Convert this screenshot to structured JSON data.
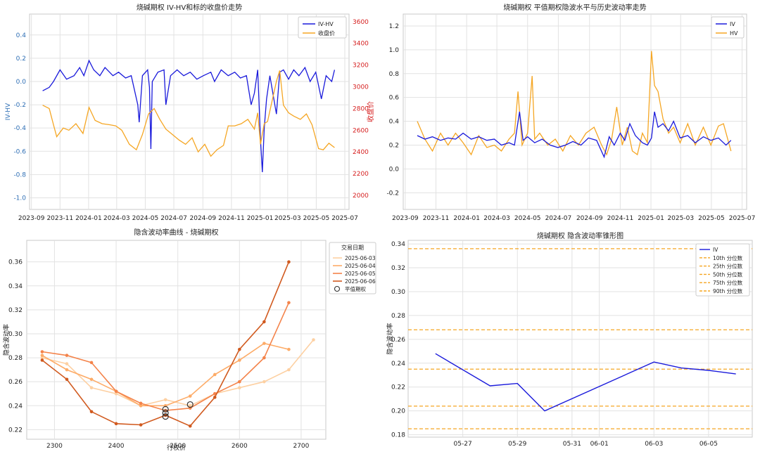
{
  "chart_data": [
    {
      "type": "line",
      "title": "烧碱期权 IV-HV和标的收盘价走势",
      "ylabel": "IV-HV",
      "y2label": "收盘价",
      "ylim": [
        -1.1,
        0.58
      ],
      "y2lim": [
        1870,
        3670
      ],
      "xlim": [
        "2023-08-28",
        "2025-07-10"
      ],
      "yticks": [
        -1.0,
        -0.8,
        -0.6,
        -0.4,
        -0.2,
        0.0,
        0.2,
        0.4
      ],
      "y2ticks": [
        2000,
        2200,
        2400,
        2600,
        2800,
        3000,
        3200,
        3400,
        3600
      ],
      "xticks": [
        "2023-09",
        "2023-11",
        "2024-01",
        "2024-03",
        "2024-05",
        "2024-07",
        "2024-09",
        "2024-11",
        "2025-01",
        "2025-03",
        "2025-05",
        "2025-07"
      ],
      "grid": true,
      "legend": "top-right",
      "series": [
        {
          "name": "IV-HV",
          "color": "#1a1adb",
          "x": [
            "2023-09-25",
            "2023-10-09",
            "2023-10-18",
            "2023-11-01",
            "2023-11-15",
            "2023-12-01",
            "2023-12-13",
            "2023-12-22",
            "2024-01-02",
            "2024-01-12",
            "2024-01-25",
            "2024-02-05",
            "2024-02-22",
            "2024-03-05",
            "2024-03-20",
            "2024-04-01",
            "2024-04-15",
            "2024-04-18",
            "2024-04-25",
            "2024-05-06",
            "2024-05-10",
            "2024-05-13",
            "2024-05-16",
            "2024-05-28",
            "2024-06-10",
            "2024-06-14",
            "2024-06-24",
            "2024-07-08",
            "2024-07-22",
            "2024-08-05",
            "2024-08-19",
            "2024-09-02",
            "2024-09-18",
            "2024-09-26",
            "2024-10-10",
            "2024-10-25",
            "2024-11-08",
            "2024-11-20",
            "2024-12-03",
            "2024-12-13",
            "2024-12-20",
            "2024-12-27",
            "2025-01-02",
            "2025-01-06",
            "2025-01-10",
            "2025-01-15",
            "2025-01-22",
            "2025-02-05",
            "2025-02-12",
            "2025-02-20",
            "2025-03-03",
            "2025-03-14",
            "2025-03-25",
            "2025-04-07",
            "2025-04-18",
            "2025-04-30",
            "2025-05-12",
            "2025-05-22",
            "2025-06-03",
            "2025-06-09"
          ],
          "y": [
            -0.08,
            -0.05,
            0.0,
            0.1,
            0.02,
            0.05,
            0.12,
            0.05,
            0.18,
            0.1,
            0.05,
            0.12,
            0.05,
            0.08,
            0.03,
            0.05,
            -0.2,
            -0.35,
            0.05,
            0.1,
            -0.05,
            -0.58,
            0.0,
            0.08,
            0.1,
            -0.2,
            0.05,
            0.1,
            0.05,
            0.08,
            0.02,
            0.05,
            0.08,
            0.0,
            0.1,
            0.05,
            0.08,
            0.03,
            0.05,
            -0.2,
            -0.1,
            0.1,
            -0.5,
            -0.78,
            -0.4,
            -0.15,
            0.05,
            -0.28,
            0.08,
            0.1,
            0.02,
            0.1,
            0.05,
            0.12,
            0.0,
            0.08,
            -0.15,
            0.05,
            0.0,
            0.1
          ]
        },
        {
          "name": "收盘价",
          "axis": "y2",
          "color": "#f5a623",
          "x": [
            "2023-09-25",
            "2023-10-09",
            "2023-10-18",
            "2023-10-25",
            "2023-11-08",
            "2023-11-20",
            "2023-12-05",
            "2023-12-20",
            "2024-01-02",
            "2024-01-15",
            "2024-01-30",
            "2024-02-15",
            "2024-02-28",
            "2024-03-12",
            "2024-03-28",
            "2024-04-12",
            "2024-04-25",
            "2024-05-08",
            "2024-05-20",
            "2024-06-01",
            "2024-06-14",
            "2024-06-28",
            "2024-07-12",
            "2024-07-26",
            "2024-08-09",
            "2024-08-22",
            "2024-09-05",
            "2024-09-18",
            "2024-10-01",
            "2024-10-15",
            "2024-10-25",
            "2024-11-08",
            "2024-11-22",
            "2024-12-06",
            "2024-12-20",
            "2024-12-27",
            "2025-01-02",
            "2025-01-10",
            "2025-01-17",
            "2025-02-05",
            "2025-02-12",
            "2025-02-20",
            "2025-03-03",
            "2025-03-14",
            "2025-03-28",
            "2025-04-10",
            "2025-04-22",
            "2025-05-06",
            "2025-05-16",
            "2025-05-28",
            "2025-06-09"
          ],
          "y": [
            2830,
            2800,
            2650,
            2540,
            2620,
            2600,
            2660,
            2570,
            2810,
            2690,
            2660,
            2650,
            2640,
            2600,
            2470,
            2420,
            2560,
            2750,
            2800,
            2700,
            2610,
            2560,
            2510,
            2470,
            2530,
            2400,
            2470,
            2360,
            2420,
            2460,
            2640,
            2640,
            2660,
            2700,
            2610,
            2760,
            2470,
            2660,
            2680,
            3050,
            3150,
            2830,
            2760,
            2730,
            2700,
            2750,
            2650,
            2430,
            2420,
            2480,
            2440
          ]
        }
      ]
    },
    {
      "type": "line",
      "title": "烧碱期权 平值期权隐波水平与历史波动率走势",
      "ylim": [
        -0.34,
        1.3
      ],
      "xlim": [
        "2023-08-28",
        "2025-07-10"
      ],
      "yticks": [
        -0.2,
        0.0,
        0.2,
        0.4,
        0.6,
        0.8,
        1.0,
        1.2
      ],
      "xticks": [
        "2023-09",
        "2023-11",
        "2024-01",
        "2024-03",
        "2024-05",
        "2024-07",
        "2024-09",
        "2024-11",
        "2025-01",
        "2025-03",
        "2025-05",
        "2025-07"
      ],
      "grid": true,
      "legend": "top-right",
      "series": [
        {
          "name": "IV",
          "color": "#1a1adb",
          "x": [
            "2023-09-25",
            "2023-10-10",
            "2023-10-25",
            "2023-11-10",
            "2023-11-25",
            "2023-12-10",
            "2023-12-25",
            "2024-01-10",
            "2024-01-25",
            "2024-02-10",
            "2024-02-25",
            "2024-03-10",
            "2024-03-25",
            "2024-04-05",
            "2024-04-15",
            "2024-04-22",
            "2024-05-01",
            "2024-05-15",
            "2024-05-30",
            "2024-06-15",
            "2024-06-30",
            "2024-07-15",
            "2024-07-30",
            "2024-08-15",
            "2024-08-30",
            "2024-09-15",
            "2024-09-30",
            "2024-10-10",
            "2024-10-20",
            "2024-11-01",
            "2024-11-10",
            "2024-11-20",
            "2024-12-01",
            "2024-12-15",
            "2024-12-25",
            "2025-01-02",
            "2025-01-08",
            "2025-01-15",
            "2025-01-25",
            "2025-02-05",
            "2025-02-15",
            "2025-02-28",
            "2025-03-15",
            "2025-03-30",
            "2025-04-15",
            "2025-04-30",
            "2025-05-15",
            "2025-05-30",
            "2025-06-09"
          ],
          "y": [
            0.28,
            0.25,
            0.27,
            0.24,
            0.26,
            0.25,
            0.3,
            0.25,
            0.27,
            0.24,
            0.25,
            0.2,
            0.22,
            0.2,
            0.48,
            0.24,
            0.27,
            0.22,
            0.25,
            0.2,
            0.18,
            0.2,
            0.23,
            0.2,
            0.26,
            0.24,
            0.1,
            0.27,
            0.2,
            0.3,
            0.24,
            0.38,
            0.28,
            0.22,
            0.2,
            0.26,
            0.48,
            0.35,
            0.38,
            0.32,
            0.4,
            0.26,
            0.28,
            0.22,
            0.27,
            0.24,
            0.26,
            0.2,
            0.24
          ]
        },
        {
          "name": "HV",
          "color": "#f5a623",
          "x": [
            "2023-09-25",
            "2023-10-10",
            "2023-10-25",
            "2023-11-10",
            "2023-11-25",
            "2023-12-10",
            "2023-12-25",
            "2024-01-10",
            "2024-01-25",
            "2024-02-10",
            "2024-02-25",
            "2024-03-10",
            "2024-03-25",
            "2024-04-05",
            "2024-04-12",
            "2024-04-20",
            "2024-05-01",
            "2024-05-10",
            "2024-05-15",
            "2024-05-25",
            "2024-06-10",
            "2024-06-25",
            "2024-07-10",
            "2024-07-25",
            "2024-08-10",
            "2024-08-25",
            "2024-09-10",
            "2024-09-25",
            "2024-10-05",
            "2024-10-15",
            "2024-10-25",
            "2024-11-05",
            "2024-11-15",
            "2024-11-25",
            "2024-12-05",
            "2024-12-15",
            "2024-12-25",
            "2025-01-02",
            "2025-01-08",
            "2025-01-15",
            "2025-01-25",
            "2025-02-05",
            "2025-02-15",
            "2025-02-28",
            "2025-03-15",
            "2025-03-30",
            "2025-04-15",
            "2025-04-30",
            "2025-05-15",
            "2025-05-25",
            "2025-06-09"
          ],
          "y": [
            0.4,
            0.25,
            0.15,
            0.3,
            0.2,
            0.3,
            0.22,
            0.12,
            0.28,
            0.18,
            0.2,
            0.15,
            0.25,
            0.3,
            0.65,
            0.2,
            0.3,
            0.78,
            0.25,
            0.3,
            0.2,
            0.25,
            0.15,
            0.28,
            0.2,
            0.3,
            0.35,
            0.2,
            0.12,
            0.25,
            0.52,
            0.2,
            0.35,
            0.15,
            0.12,
            0.3,
            0.22,
            0.99,
            0.7,
            0.65,
            0.42,
            0.3,
            0.35,
            0.22,
            0.38,
            0.2,
            0.35,
            0.2,
            0.36,
            0.38,
            0.15
          ]
        }
      ]
    },
    {
      "type": "line",
      "title": "隐含波动率曲线 - 烧碱期权",
      "xlabel": "行权价",
      "ylabel": "隐含波动率",
      "xlim": [
        2255,
        2740
      ],
      "ylim": [
        0.212,
        0.378
      ],
      "xticks": [
        2300,
        2400,
        2500,
        2600,
        2700
      ],
      "yticks": [
        0.22,
        0.24,
        0.26,
        0.28,
        0.3,
        0.32,
        0.34,
        0.36
      ],
      "grid": true,
      "legend": "outside-top-right",
      "legend_title": "交易日期",
      "atm_label": "平值期权",
      "series": [
        {
          "name": "2025-06-03",
          "color": "#fdd0a2",
          "x": [
            2280,
            2320,
            2360,
            2400,
            2440,
            2480,
            2520,
            2560,
            2600,
            2640,
            2680,
            2720
          ],
          "y": [
            0.28,
            0.275,
            0.255,
            0.25,
            0.24,
            0.245,
            0.24,
            0.25,
            0.255,
            0.26,
            0.27,
            0.295
          ],
          "atm": [
            2520,
            0.241
          ]
        },
        {
          "name": "2025-06-04",
          "color": "#fdab67",
          "x": [
            2280,
            2320,
            2360,
            2400,
            2440,
            2480,
            2520,
            2560,
            2600,
            2640,
            2680
          ],
          "y": [
            0.282,
            0.27,
            0.262,
            0.252,
            0.24,
            0.24,
            0.248,
            0.266,
            0.278,
            0.292,
            0.287
          ],
          "atm": [
            2480,
            0.237
          ]
        },
        {
          "name": "2025-06-05",
          "color": "#f4834a",
          "x": [
            2280,
            2320,
            2360,
            2400,
            2440,
            2480,
            2520,
            2560,
            2600,
            2640,
            2680
          ],
          "y": [
            0.285,
            0.282,
            0.276,
            0.252,
            0.242,
            0.236,
            0.238,
            0.25,
            0.26,
            0.28,
            0.326
          ],
          "atm": [
            2480,
            0.234
          ]
        },
        {
          "name": "2025-06-06",
          "color": "#d15a1f",
          "x": [
            2280,
            2320,
            2360,
            2400,
            2440,
            2480,
            2520,
            2560,
            2600,
            2640,
            2680
          ],
          "y": [
            0.278,
            0.262,
            0.235,
            0.225,
            0.224,
            0.232,
            0.223,
            0.247,
            0.287,
            0.31,
            0.36
          ],
          "atm": [
            2480,
            0.231
          ]
        }
      ]
    },
    {
      "type": "line",
      "title": "烧碱期权 隐含波动率锥形图",
      "ylabel": "隐含波动率",
      "ylim": [
        0.178,
        0.343
      ],
      "xlim": [
        "2025-05-25",
        "2025-06-06.6"
      ],
      "yticks": [
        0.18,
        0.2,
        0.22,
        0.24,
        0.26,
        0.28,
        0.3,
        0.32,
        0.34
      ],
      "xticks": [
        "05-27",
        "05-29",
        "05-31",
        "06-01",
        "06-03",
        "06-05"
      ],
      "grid": true,
      "legend": "top-right",
      "series": [
        {
          "name": "IV",
          "color": "#1a1adb",
          "x": [
            "05-26",
            "05-28",
            "05-29",
            "05-30",
            "06-03",
            "06-04",
            "06-05",
            "06-06"
          ],
          "y": [
            0.248,
            0.221,
            0.223,
            0.2,
            0.241,
            0.236,
            0.234,
            0.231
          ]
        }
      ],
      "percentiles": [
        {
          "name": "10th 分位数",
          "value": 0.185,
          "color": "#f5a623"
        },
        {
          "name": "25th 分位数",
          "value": 0.204,
          "color": "#f5a623"
        },
        {
          "name": "50th 分位数",
          "value": 0.235,
          "color": "#f5a623"
        },
        {
          "name": "75th 分位数",
          "value": 0.268,
          "color": "#f5a623"
        },
        {
          "name": "90th 分位数",
          "value": 0.336,
          "color": "#f5a623"
        }
      ]
    }
  ]
}
